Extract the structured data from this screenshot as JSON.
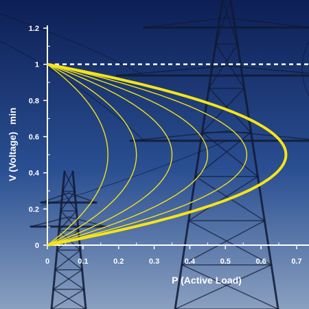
{
  "colors": {
    "sky_top": "#0d1f55",
    "sky_mid": "#2a4f92",
    "sky_bottom": "#8aa0c0",
    "tower": "#101a34",
    "axis": "#ffffff",
    "curve": "#f5e417",
    "limit_line": "#ffffff"
  },
  "chart_data": {
    "type": "line",
    "xlabel": "P  (Active Load)",
    "ylabel": "V (Voltage)",
    "ylabel_extra": "min",
    "xlim": [
      0,
      0.7
    ],
    "ylim": [
      0,
      1.2
    ],
    "x_ticks": [
      "0",
      "0.1",
      "0.2",
      "0.3",
      "0.4",
      "0.5",
      "0.6",
      "0.7"
    ],
    "y_ticks": [
      "0",
      "0.2",
      "0.4",
      "0.6",
      "0.8",
      "1",
      "1.2"
    ],
    "y_tick_values": [
      0,
      0.2,
      0.4,
      0.6,
      0.8,
      1.0,
      1.2
    ],
    "x_tick_values": [
      0,
      0.1,
      0.2,
      0.3,
      0.4,
      0.5,
      0.6,
      0.7
    ],
    "reference_line": {
      "y": 1.0,
      "style": "dashed"
    },
    "grid": false,
    "series": [
      {
        "pmax": 0.17,
        "emphasis": false
      },
      {
        "pmax": 0.25,
        "emphasis": false
      },
      {
        "pmax": 0.35,
        "emphasis": false
      },
      {
        "pmax": 0.45,
        "emphasis": false
      },
      {
        "pmax": 0.56,
        "emphasis": false
      },
      {
        "pmax": 0.67,
        "emphasis": true
      }
    ]
  }
}
